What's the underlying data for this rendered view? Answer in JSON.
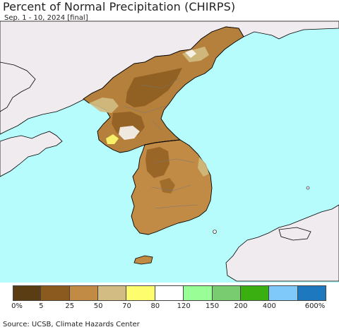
{
  "title": "Percent of Normal Precipitation (CHIRPS)",
  "subtitle": "Sep. 1 - 10, 2024 [final]",
  "source": "Source: UCSB, Climate Hazards Center",
  "colors": {
    "ocean": "#b6fcfc",
    "land_outside": "#f0ebee",
    "border": "#000000",
    "admin_border": "#777777"
  },
  "legend": {
    "bins": [
      {
        "color": "#5a3d12"
      },
      {
        "color": "#8b5a1e"
      },
      {
        "color": "#c18b45"
      },
      {
        "color": "#d2bc83"
      },
      {
        "color": "#fdfd6e"
      },
      {
        "color": "#ffffff"
      },
      {
        "color": "#9afe97"
      },
      {
        "color": "#79cc6f"
      },
      {
        "color": "#3aaf12"
      },
      {
        "color": "#7ec8fa"
      },
      {
        "color": "#1e78c0"
      }
    ],
    "labels": [
      "0%",
      "5",
      "25",
      "50",
      "70",
      "80",
      "120",
      "150",
      "200",
      "400",
      "600%"
    ]
  }
}
